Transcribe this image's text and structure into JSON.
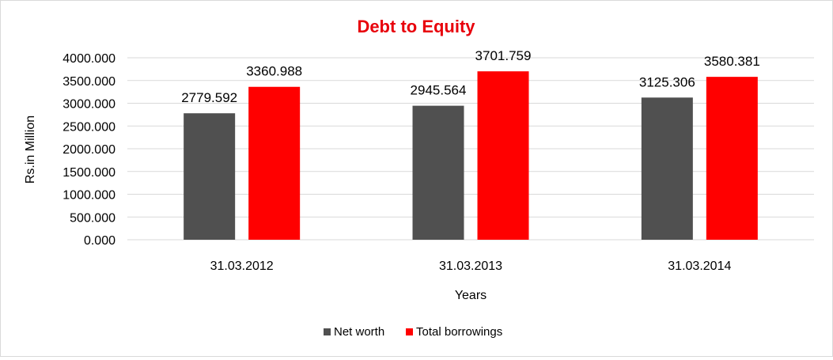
{
  "chart_data": {
    "type": "bar",
    "title": "Debt to Equity",
    "xlabel": "Years",
    "ylabel": "Rs.in Million",
    "categories": [
      "31.03.2012",
      "31.03.2013",
      "31.03.2014"
    ],
    "series": [
      {
        "name": "Net worth",
        "color": "#505050",
        "values": [
          2779.592,
          2945.564,
          3125.306
        ],
        "labels": [
          "2779.592",
          "2945.564",
          "3125.306"
        ]
      },
      {
        "name": "Total borrowings",
        "color": "#ff0000",
        "values": [
          3360.988,
          3701.759,
          3580.381
        ],
        "labels": [
          "3360.988",
          "3701.759",
          "3580.381"
        ]
      }
    ],
    "yticks": [
      "0.000",
      "500.000",
      "1000.000",
      "1500.000",
      "2000.000",
      "2500.000",
      "3000.000",
      "3500.000",
      "4000.000"
    ],
    "ylim": [
      0,
      4000
    ],
    "grid": true,
    "legend": "bottom",
    "title_color": "#e8000b"
  }
}
